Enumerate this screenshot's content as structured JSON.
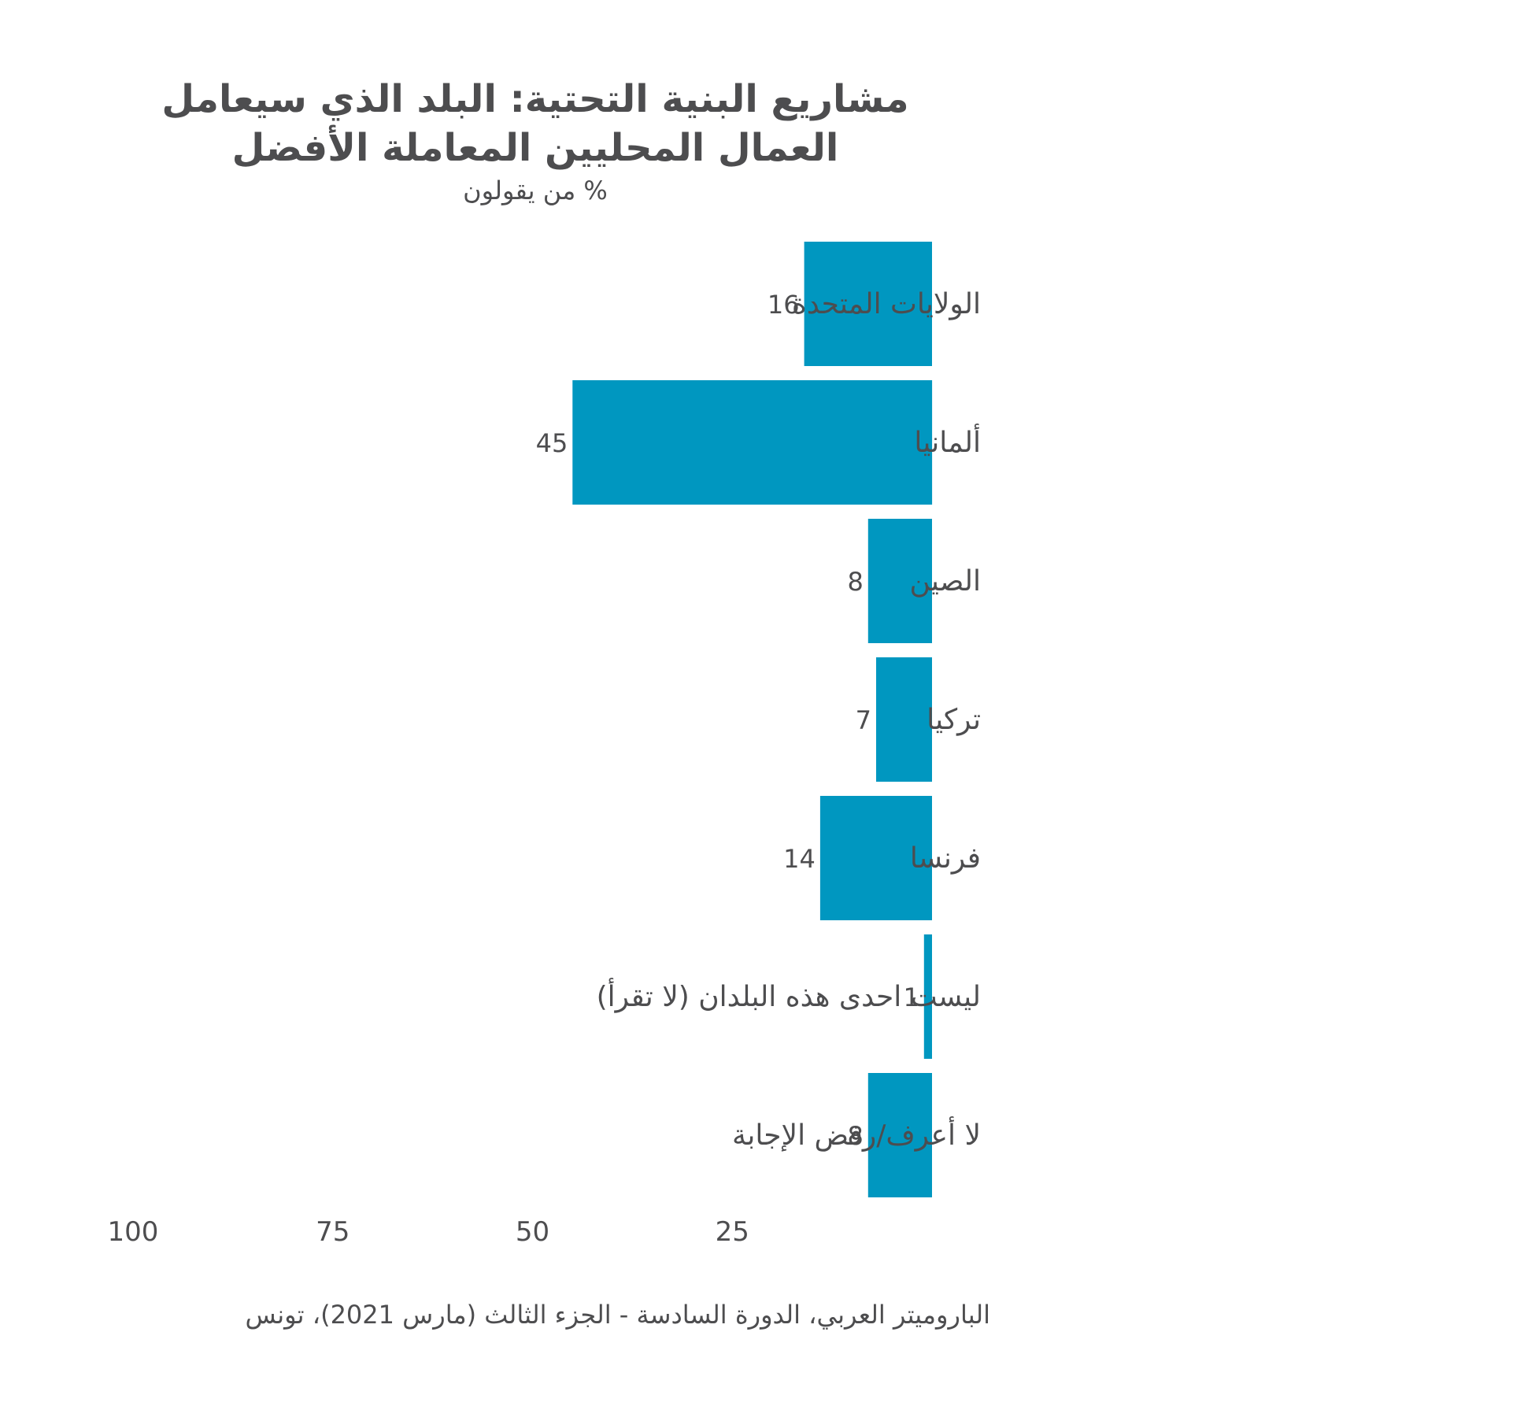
{
  "title_line1": "مشاريع البنية التحتية: البلد الذي سيعامل",
  "title_line2": "العمال المحليين المعاملة الأفضل",
  "subtitle": "% من يقولون",
  "source": "الباروميتر العربي، الدورة السادسة - الجزء الثالث (مارس 2021)، تونس",
  "colors": {
    "bar": "#0097c0",
    "text": "#4d4d4f"
  },
  "chart_data": {
    "type": "bar",
    "orientation": "horizontal",
    "categories": [
      "الولايات المتحدة",
      "ألمانيا",
      "الصين",
      "تركيا",
      "فرنسا",
      "ليست احدى هذه البلدان (لا تقرأ)",
      "لا أعرف/رفض الإجابة"
    ],
    "values": [
      16,
      45,
      8,
      7,
      14,
      1,
      8
    ],
    "xlim": [
      0,
      100
    ],
    "x_direction": "right-to-left",
    "x_ticks": [
      100,
      75,
      50,
      25
    ],
    "grid": false,
    "data_labels": true
  }
}
